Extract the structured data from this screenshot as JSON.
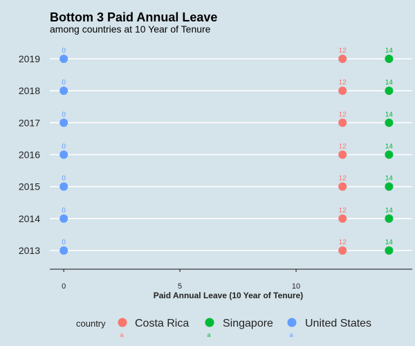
{
  "chart_data": {
    "type": "scatter",
    "title": "Bottom 3 Paid Annual Leave",
    "subtitle": "among countries at 10 Year of Tenure",
    "xlabel": "Paid Annual Leave (10 Year of Tenure)",
    "ylabel": "",
    "xlim": [
      -0.6,
      15
    ],
    "x_ticks": [
      0,
      5,
      10
    ],
    "categories": [
      "2013",
      "2014",
      "2015",
      "2016",
      "2017",
      "2018",
      "2019"
    ],
    "grid": "horizontal",
    "legend_position": "bottom",
    "legend_title": "country",
    "legend_key_glyph": "a",
    "series": [
      {
        "name": "Costa Rica",
        "color": "#f8766d",
        "values": [
          12,
          12,
          12,
          12,
          12,
          12,
          12
        ]
      },
      {
        "name": "Singapore",
        "color": "#00ba38",
        "values": [
          14,
          14,
          14,
          14,
          14,
          14,
          14
        ]
      },
      {
        "name": "United States",
        "color": "#619cff",
        "values": [
          0,
          0,
          0,
          0,
          0,
          0,
          0
        ]
      }
    ]
  }
}
